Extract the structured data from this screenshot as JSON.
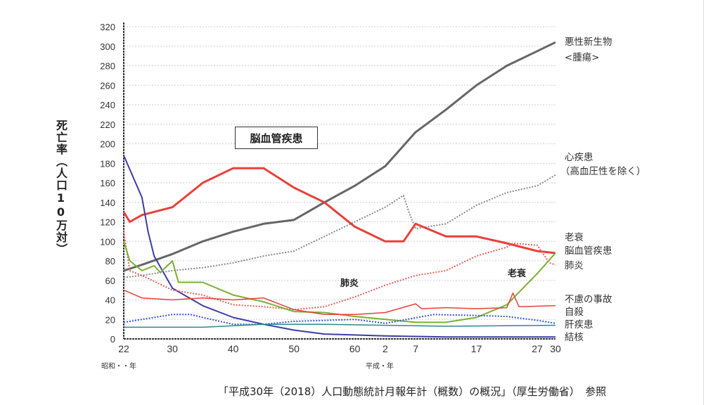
{
  "chart_data": {
    "type": "line",
    "title": "",
    "ylabel": "死亡率（人口10万対）",
    "xlabel_showa": "昭和・・年",
    "xlabel_heisei": "平成・年",
    "xlim": [
      1947,
      2018
    ],
    "ylim": [
      0,
      320
    ],
    "yticks": [
      0,
      20,
      40,
      60,
      80,
      100,
      120,
      140,
      160,
      180,
      200,
      220,
      240,
      260,
      280,
      300,
      320
    ],
    "xticks": [
      {
        "year": 1947,
        "label": "22"
      },
      {
        "year": 1955,
        "label": "30"
      },
      {
        "year": 1965,
        "label": "40"
      },
      {
        "year": 1975,
        "label": "50"
      },
      {
        "year": 1985,
        "label": "60"
      },
      {
        "year": 1990,
        "label": "2"
      },
      {
        "year": 1995,
        "label": "7"
      },
      {
        "year": 2005,
        "label": "17"
      },
      {
        "year": 2015,
        "label": "27"
      },
      {
        "year": 2018,
        "label": "30"
      }
    ],
    "grid": true,
    "series": [
      {
        "name": "悪性新生物<腫瘍>",
        "color": "#666666",
        "style": "solid",
        "width": 3,
        "x": [
          1947,
          1950,
          1955,
          1960,
          1965,
          1970,
          1975,
          1980,
          1985,
          1990,
          1995,
          2000,
          2005,
          2010,
          2015,
          2018
        ],
        "y": [
          70,
          76,
          87,
          100,
          110,
          118,
          122,
          140,
          157,
          177,
          212,
          235,
          260,
          280,
          295,
          304
        ]
      },
      {
        "name": "心疾患（高血圧性を除く）",
        "color": "#888888",
        "style": "dotted",
        "width": 2,
        "x": [
          1947,
          1950,
          1955,
          1960,
          1965,
          1970,
          1975,
          1980,
          1985,
          1990,
          1993,
          1994,
          1995,
          2000,
          2005,
          2010,
          2015,
          2018
        ],
        "y": [
          63,
          65,
          70,
          73,
          78,
          85,
          90,
          105,
          120,
          135,
          147,
          128,
          113,
          118,
          137,
          150,
          157,
          168
        ]
      },
      {
        "name": "脳血管疾患",
        "color": "#e8403a",
        "style": "solid",
        "width": 3,
        "x": [
          1947,
          1948,
          1950,
          1955,
          1958,
          1960,
          1965,
          1970,
          1975,
          1980,
          1985,
          1990,
          1993,
          1995,
          2000,
          2005,
          2010,
          2015,
          2018
        ],
        "y": [
          130,
          120,
          127,
          135,
          150,
          160,
          175,
          175,
          155,
          140,
          115,
          100,
          100,
          118,
          105,
          105,
          98,
          90,
          88
        ]
      },
      {
        "name": "結核",
        "color": "#3d3da8",
        "style": "solid",
        "width": 2,
        "x": [
          1947,
          1950,
          1951,
          1952,
          1955,
          1960,
          1965,
          1970,
          1975,
          1980,
          1985,
          1990,
          2000,
          2018
        ],
        "y": [
          188,
          145,
          110,
          85,
          52,
          34,
          22,
          15,
          9,
          5,
          4,
          3,
          2,
          2
        ]
      },
      {
        "name": "肺炎",
        "color": "#e8605a",
        "style": "dotted",
        "width": 2,
        "x": [
          1947,
          1948,
          1950,
          1955,
          1960,
          1965,
          1970,
          1975,
          1980,
          1985,
          1990,
          1995,
          2000,
          2005,
          2010,
          2011,
          2015,
          2017,
          2018
        ],
        "y": [
          110,
          70,
          65,
          50,
          45,
          35,
          33,
          30,
          33,
          43,
          55,
          65,
          70,
          85,
          94,
          98,
          96,
          78,
          76
        ]
      },
      {
        "name": "老衰",
        "color": "#7ab032",
        "style": "solid",
        "width": 2,
        "x": [
          1947,
          1948,
          1950,
          1952,
          1953,
          1955,
          1956,
          1960,
          1965,
          1970,
          1975,
          1980,
          1985,
          1990,
          1995,
          2000,
          2005,
          2010,
          2015,
          2018
        ],
        "y": [
          100,
          80,
          70,
          75,
          68,
          80,
          58,
          58,
          45,
          38,
          28,
          27,
          23,
          20,
          17,
          17,
          22,
          35,
          67,
          88
        ]
      },
      {
        "name": "不慮の事故",
        "color": "#e8403a",
        "style": "solid",
        "width": 1.5,
        "x": [
          1947,
          1950,
          1955,
          1960,
          1965,
          1970,
          1975,
          1980,
          1985,
          1990,
          1995,
          1996,
          2000,
          2005,
          2010,
          2011,
          2012,
          2018
        ],
        "y": [
          50,
          42,
          40,
          42,
          40,
          42,
          30,
          25,
          25,
          27,
          36,
          31,
          32,
          31,
          32,
          47,
          33,
          34
        ]
      },
      {
        "name": "自殺",
        "color": "#3355cc",
        "style": "dotted",
        "width": 2,
        "x": [
          1947,
          1955,
          1958,
          1960,
          1965,
          1970,
          1975,
          1985,
          1990,
          1998,
          2005,
          2010,
          2015,
          2018
        ],
        "y": [
          17,
          25,
          25,
          22,
          15,
          15,
          18,
          20,
          16,
          25,
          24,
          23,
          19,
          16
        ]
      },
      {
        "name": "肝疾患",
        "color": "#2a8a8a",
        "style": "solid",
        "width": 1.5,
        "x": [
          1947,
          1960,
          1970,
          1980,
          1990,
          2000,
          2018
        ],
        "y": [
          12,
          12,
          15,
          15,
          14,
          13,
          14
        ]
      }
    ],
    "right_labels": [
      {
        "text": "悪性新生物"
      },
      {
        "text": "<腫瘍>"
      },
      {
        "text": "心疾患"
      },
      {
        "text": "（高血圧性を除く）"
      },
      {
        "text": "老衰"
      },
      {
        "text": "脳血管疾患"
      },
      {
        "text": "肺炎"
      },
      {
        "text": "不慮の事故"
      },
      {
        "text": "自殺"
      },
      {
        "text": "肝疾患"
      },
      {
        "text": "結核"
      }
    ],
    "annotations": {
      "stroke": "脳血管疾患",
      "pneumonia": "肺炎",
      "senility": "老衰"
    }
  },
  "source": "「平成30年（2018）人口動態統計月報年計（概数）の概況」（厚生労働省）　参照"
}
